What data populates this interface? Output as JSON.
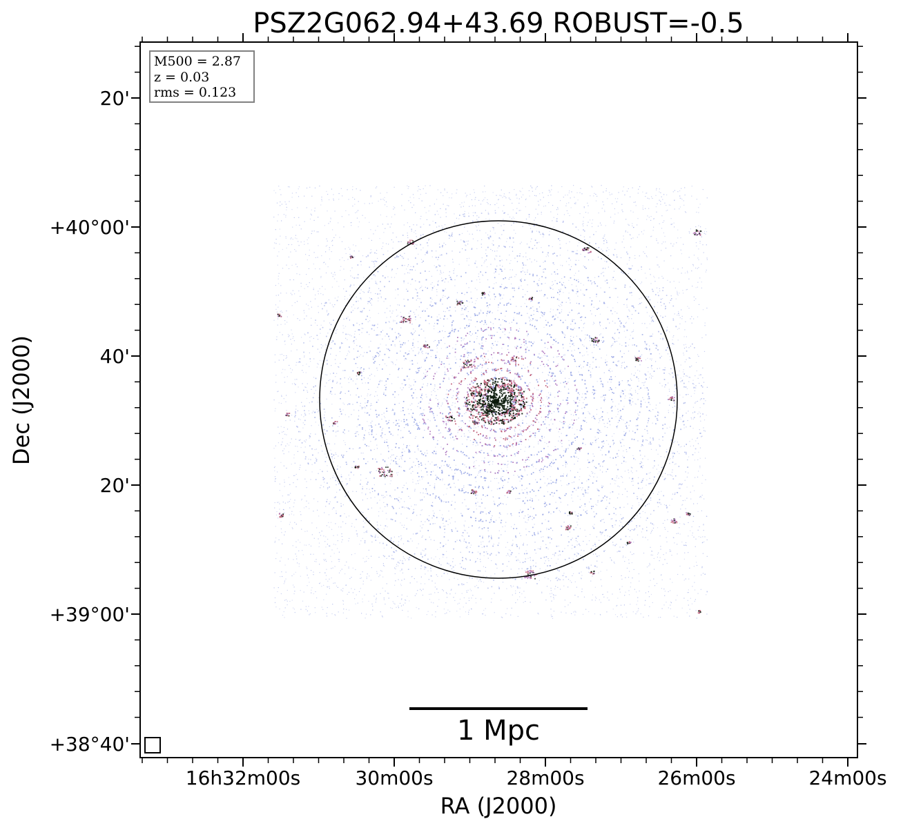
{
  "title": "PSZ2G062.94+43.69 ROBUST=-0.5",
  "xlabel": "RA (J2000)",
  "ylabel": "Dec (J2000)",
  "x_ticks": [
    "16h32m00s",
    "30m00s",
    "28m00s",
    "26m00s",
    "24m00s"
  ],
  "y_ticks": [
    "20'",
    "+40°00'",
    "40'",
    "20'",
    "+39°00'",
    "+38°40'"
  ],
  "info": {
    "m500": "M500 = 2.87",
    "z": "z = 0.03",
    "rms": "rms = 0.123"
  },
  "scale_bar_label": "1 Mpc",
  "colors": {
    "faint_emission": "#9aa8e6",
    "medium_emission": "#b07ac0",
    "strong_emission": "#c0607a",
    "peak_emission": "#0a1a0a",
    "frame": "#000000",
    "info_box_border": "#808080"
  }
}
